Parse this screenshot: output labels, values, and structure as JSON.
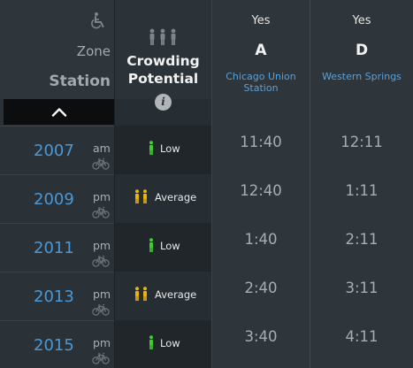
{
  "header": {
    "zone_label": "Zone",
    "station_label": "Station",
    "crowding_title_line1": "Crowding",
    "crowding_title_line2": "Potential",
    "info_glyph": "i"
  },
  "icons": {
    "accessible": "wheelchair-icon",
    "crowding": "crowd-icon",
    "info": "info-icon",
    "collapse": "chevron-up-icon",
    "bike": "bicycle-icon"
  },
  "colors": {
    "low": "#3fcf2d",
    "average": "#f0b20a",
    "link": "#4a98d6"
  },
  "stations": [
    {
      "accessible": "Yes",
      "zone": "A",
      "name_line1": "Chicago Union",
      "name_line2": "Station"
    },
    {
      "accessible": "Yes",
      "zone": "D",
      "name_line1": "Western Springs",
      "name_line2": ""
    }
  ],
  "trains": [
    {
      "number": "2007",
      "ampm": "am",
      "crowding": "Low",
      "level": "low",
      "times": [
        "11:40",
        "12:11"
      ]
    },
    {
      "number": "2009",
      "ampm": "pm",
      "crowding": "Average",
      "level": "average",
      "times": [
        "12:40",
        "1:11"
      ]
    },
    {
      "number": "2011",
      "ampm": "pm",
      "crowding": "Low",
      "level": "low",
      "times": [
        "1:40",
        "2:11"
      ]
    },
    {
      "number": "2013",
      "ampm": "pm",
      "crowding": "Average",
      "level": "average",
      "times": [
        "2:40",
        "3:11"
      ]
    },
    {
      "number": "2015",
      "ampm": "pm",
      "crowding": "Low",
      "level": "low",
      "times": [
        "3:40",
        "4:11"
      ]
    }
  ]
}
